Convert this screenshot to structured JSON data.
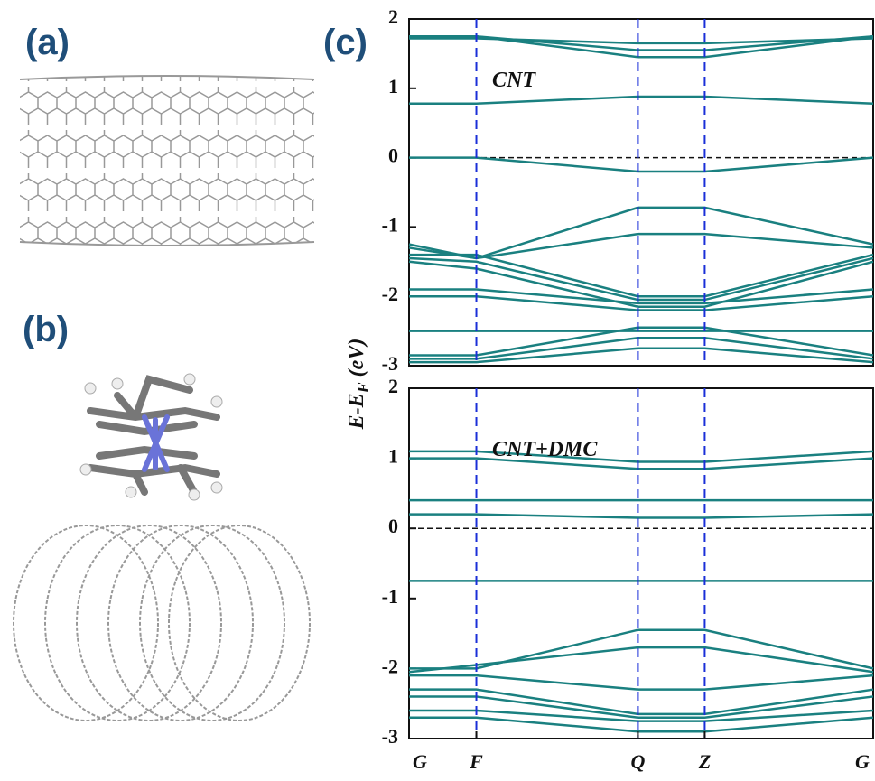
{
  "panels": {
    "a": "(a)",
    "b": "(b)",
    "c": "(c)"
  },
  "ylabel": [
    "E-E",
    "F",
    " (eV)"
  ],
  "chart_data": [
    {
      "type": "line",
      "annotation": "CNT",
      "color": "#1a8080",
      "zero_line": true,
      "x": [
        0,
        0.145,
        0.493,
        0.637,
        1
      ],
      "xlim": [
        0,
        1
      ],
      "vlines": [
        0.145,
        0.493,
        0.637
      ],
      "ylim": [
        -3,
        2
      ],
      "yticks": [
        -3,
        -2,
        -1,
        0,
        1,
        2
      ],
      "series": [
        {
          "values": [
            1.75,
            1.75,
            1.45,
            1.45,
            1.75
          ]
        },
        {
          "values": [
            1.75,
            1.75,
            1.55,
            1.55,
            1.75
          ]
        },
        {
          "values": [
            1.72,
            1.72,
            1.65,
            1.65,
            1.72
          ]
        },
        {
          "values": [
            0.78,
            0.78,
            0.88,
            0.88,
            0.78
          ]
        },
        {
          "values": [
            0,
            0,
            -0.2,
            -0.2,
            0
          ]
        },
        {
          "values": [
            -1.25,
            -1.45,
            -0.72,
            -0.72,
            -1.25
          ]
        },
        {
          "values": [
            -1.3,
            -1.45,
            -1.1,
            -1.1,
            -1.3
          ]
        },
        {
          "values": [
            -1.4,
            -1.4,
            -2.0,
            -2.0,
            -1.4
          ]
        },
        {
          "values": [
            -1.45,
            -1.5,
            -2.05,
            -2.05,
            -1.45
          ]
        },
        {
          "values": [
            -1.5,
            -1.6,
            -2.15,
            -2.15,
            -1.5
          ]
        },
        {
          "values": [
            -1.9,
            -1.9,
            -2.1,
            -2.1,
            -1.9
          ]
        },
        {
          "values": [
            -2.0,
            -2.0,
            -2.2,
            -2.2,
            -2.0
          ]
        },
        {
          "values": [
            -2.5,
            -2.5,
            -2.5,
            -2.5,
            -2.5
          ]
        },
        {
          "values": [
            -2.85,
            -2.85,
            -2.45,
            -2.45,
            -2.85
          ]
        },
        {
          "values": [
            -2.9,
            -2.9,
            -2.6,
            -2.6,
            -2.9
          ]
        },
        {
          "values": [
            -2.95,
            -2.95,
            -2.75,
            -2.75,
            -2.95
          ]
        }
      ]
    },
    {
      "type": "line",
      "annotation": "CNT+DMC",
      "color": "#1a8080",
      "zero_line": true,
      "x": [
        0,
        0.145,
        0.493,
        0.637,
        1
      ],
      "xlim": [
        0,
        1
      ],
      "vlines": [
        0.145,
        0.493,
        0.637
      ],
      "xticks": [
        {
          "value": 0,
          "label": "G"
        },
        {
          "value": 0.145,
          "label": "F"
        },
        {
          "value": 0.493,
          "label": "Q"
        },
        {
          "value": 0.637,
          "label": "Z"
        },
        {
          "value": 1,
          "label": "G"
        }
      ],
      "ylim": [
        -3,
        2
      ],
      "yticks": [
        -3,
        -2,
        -1,
        0,
        1,
        2
      ],
      "series": [
        {
          "values": [
            1.1,
            1.1,
            0.95,
            0.95,
            1.1
          ]
        },
        {
          "values": [
            1.0,
            1.0,
            0.85,
            0.85,
            1.0
          ]
        },
        {
          "values": [
            0.4,
            0.4,
            0.4,
            0.4,
            0.4
          ]
        },
        {
          "values": [
            0.2,
            0.2,
            0.15,
            0.15,
            0.2
          ]
        },
        {
          "values": [
            -0.75,
            -0.75,
            -0.75,
            -0.75,
            -0.75
          ]
        },
        {
          "values": [
            -2.0,
            -2.0,
            -1.45,
            -1.45,
            -2.0
          ]
        },
        {
          "values": [
            -2.05,
            -1.95,
            -1.7,
            -1.7,
            -2.05
          ]
        },
        {
          "values": [
            -2.1,
            -2.1,
            -2.3,
            -2.3,
            -2.1
          ]
        },
        {
          "values": [
            -2.3,
            -2.3,
            -2.65,
            -2.65,
            -2.3
          ]
        },
        {
          "values": [
            -2.4,
            -2.4,
            -2.7,
            -2.7,
            -2.4
          ]
        },
        {
          "values": [
            -2.6,
            -2.6,
            -2.75,
            -2.75,
            -2.6
          ]
        },
        {
          "values": [
            -2.7,
            -2.7,
            -2.9,
            -2.9,
            -2.7
          ]
        }
      ]
    }
  ]
}
